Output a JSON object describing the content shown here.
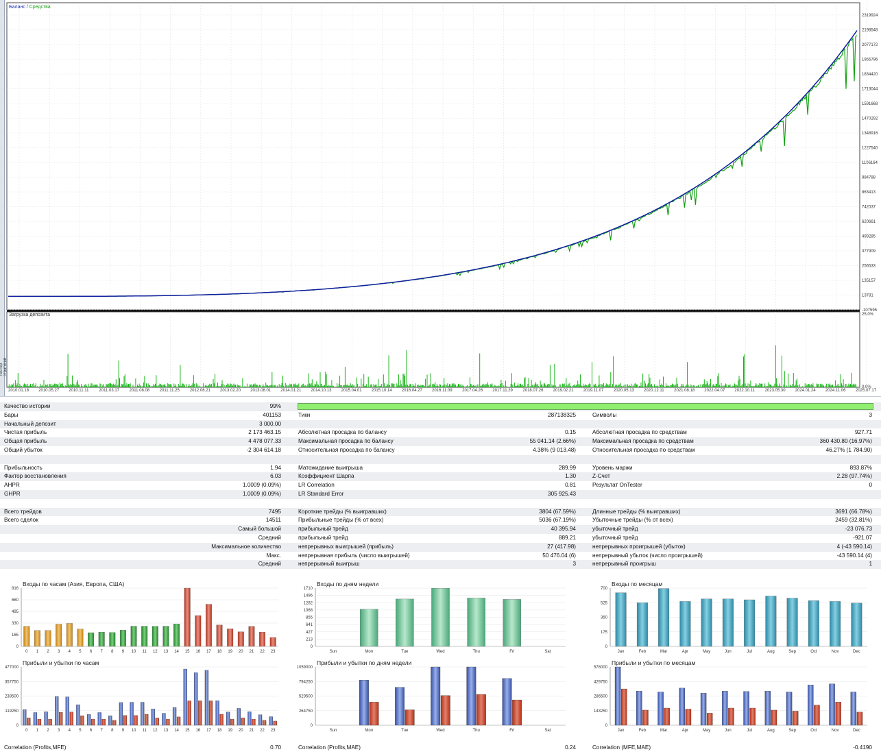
{
  "chart": {
    "legend_balance": "Баланс",
    "legend_sep": " / ",
    "legend_equity": "Средства",
    "load_title": "Загрузка депозита",
    "side_label": "Тестер стратегий",
    "y_ticks": [
      "2319924",
      "2198548",
      "2077172",
      "1955796",
      "1834420",
      "1713044",
      "1591668",
      "1470292",
      "1348916",
      "1227540",
      "1106164",
      "984788",
      "863413",
      "742037",
      "620661",
      "499285",
      "377909",
      "256533",
      "135157",
      "13781",
      "-107595"
    ],
    "load_ticks": [
      "25.0%",
      "0.0%"
    ],
    "x_ticks": [
      "2010.01.18",
      "2010.05.27",
      "2010.11.11",
      "2011.03.17",
      "2011.08.08",
      "2011.11.25",
      "2012.06.21",
      "2013.02.20",
      "2013.08.01",
      "2014.01.21",
      "2014.10.13",
      "2015.04.01",
      "2015.10.14",
      "2016.04.27",
      "2016.11.09",
      "2017.04.26",
      "2017.11.29",
      "2018.07.26",
      "2019.02.21",
      "2019.11.07",
      "2020.05.13",
      "2020.12.11",
      "2021.08.18",
      "2022.04.07",
      "2022.10.11",
      "2023.05.30",
      "2024.01.24",
      "2024.11.06",
      "2025.07.17"
    ],
    "colors": {
      "balance": "#1020a0",
      "equity": "#12a012",
      "load": "#14b414"
    }
  },
  "stats": {
    "rows": [
      {
        "alt": true,
        "cells": [
          [
            "Качество истории",
            "99%"
          ]
        ],
        "quality_bar": true
      },
      {
        "alt": false,
        "cells": [
          [
            "Бары",
            "401153"
          ],
          [
            "Тики",
            "287138325"
          ],
          [
            "Символы",
            "3"
          ]
        ]
      },
      {
        "alt": true,
        "cells": [
          [
            "Начальный депозит",
            "3 000.00"
          ]
        ]
      },
      {
        "alt": false,
        "cells": [
          [
            "Чистая прибыль",
            "2 173 463.15"
          ],
          [
            "Абсолютная просадка по балансу",
            "0.15"
          ],
          [
            "Абсолютная просадка по средствам",
            "927.71"
          ]
        ]
      },
      {
        "alt": true,
        "cells": [
          [
            "Общая прибыль",
            "4 478 077.33"
          ],
          [
            "Максимальная просадка по балансу",
            "55 041.14 (2.66%)"
          ],
          [
            "Максимальная просадка по средствам",
            "360 430.80 (16.97%)"
          ]
        ]
      },
      {
        "alt": false,
        "cells": [
          [
            "Общий убыток",
            "-2 304 614.18"
          ],
          [
            "Относительная просадка по балансу",
            "4.38% (9 013.48)"
          ],
          [
            "Относительная просадка по средствам",
            "46.27% (1 784.90)"
          ]
        ]
      },
      {
        "alt": true,
        "cells": []
      },
      {
        "alt": false,
        "cells": [
          [
            "Прибыльность",
            "1.94"
          ],
          [
            "Матожидание выигрыша",
            "289.99"
          ],
          [
            "Уровень маржи",
            "893.87%"
          ]
        ]
      },
      {
        "alt": true,
        "cells": [
          [
            "Фактор восстановления",
            "6.03"
          ],
          [
            "Коэффициент Шарпа",
            "1.30"
          ],
          [
            "Z-Счет",
            "2.28 (97.74%)"
          ]
        ]
      },
      {
        "alt": false,
        "cells": [
          [
            "AHPR",
            "1.0009 (0.09%)"
          ],
          [
            "LR Correlation",
            "0.81"
          ],
          [
            "Результат OnTester",
            "0"
          ]
        ]
      },
      {
        "alt": true,
        "cells": [
          [
            "GHPR",
            "1.0009 (0.09%)"
          ],
          [
            "LR Standard Error",
            "305 925.43"
          ]
        ]
      },
      {
        "alt": false,
        "cells": []
      },
      {
        "alt": true,
        "cells": [
          [
            "Всего трейдов",
            "7495"
          ],
          [
            "Короткие трейды (% выигравших)",
            "3804 (67.59%)"
          ],
          [
            "Длинные трейды (% выигравших)",
            "3691 (66.78%)"
          ]
        ]
      },
      {
        "alt": false,
        "cells": [
          [
            "Всего сделок",
            "14511"
          ],
          [
            "Прибыльные трейды (% от всех)",
            "5036 (67.19%)"
          ],
          [
            "Убыточные трейды (% от всех)",
            "2459 (32.81%)"
          ]
        ]
      },
      {
        "alt": true,
        "cells": [
          [
            "Самый большой",
            ""
          ],
          [
            "прибыльный трейд",
            "40 395.94"
          ],
          [
            "убыточный трейд",
            "-23 076.73"
          ]
        ],
        "first_right": true
      },
      {
        "alt": false,
        "cells": [
          [
            "Средний",
            ""
          ],
          [
            "прибыльный трейд",
            "889.21"
          ],
          [
            "убыточный трейд",
            "-921.07"
          ]
        ],
        "first_right": true
      },
      {
        "alt": true,
        "cells": [
          [
            "Максимальное количество",
            ""
          ],
          [
            "непрерывных выигрышей (прибыль)",
            "27 (417.98)"
          ],
          [
            "непрерывных проигрышей (убыток)",
            "4 (-43 590.14)"
          ]
        ],
        "first_right": true
      },
      {
        "alt": false,
        "cells": [
          [
            "Макс.",
            ""
          ],
          [
            "непрерывная прибыль (число выигрышей)",
            "50 476.04 (6)"
          ],
          [
            "непрерывный убыток (число проигрышей)",
            "-43 590.14 (4)"
          ]
        ],
        "first_right": true
      },
      {
        "alt": true,
        "cells": [
          [
            "Средний",
            ""
          ],
          [
            "непрерывный выигрыш",
            "3"
          ],
          [
            "непрерывный проигрыш",
            "1"
          ]
        ],
        "first_right": true
      }
    ]
  },
  "minis": {
    "entries_hours": {
      "title": "Входы по часам (Азия, Европа, США)",
      "ticks": [
        "816",
        "660",
        "495",
        "330",
        "165",
        "0"
      ],
      "ymax": 816,
      "categories": [
        "0",
        "1",
        "2",
        "3",
        "4",
        "5",
        "6",
        "7",
        "8",
        "9",
        "10",
        "11",
        "12",
        "13",
        "14",
        "15",
        "16",
        "17",
        "18",
        "19",
        "20",
        "21",
        "22",
        "23"
      ],
      "values": [
        282,
        223,
        223,
        312,
        322,
        243,
        192,
        200,
        195,
        228,
        283,
        283,
        282,
        283,
        315,
        816,
        432,
        590,
        300,
        246,
        205,
        280,
        200,
        125
      ]
    },
    "entries_days": {
      "title": "Входы по дням недели",
      "ticks": [
        "1710",
        "1496",
        "1282",
        "1068",
        "855",
        "641",
        "427",
        "213",
        "0"
      ],
      "ymax": 1710,
      "categories": [
        "Sun",
        "Mon",
        "Tue",
        "Wed",
        "Thu",
        "Fri",
        "Sat"
      ],
      "values": [
        0,
        1090,
        1390,
        1705,
        1420,
        1380,
        0
      ]
    },
    "entries_months": {
      "title": "Входы по месяцам",
      "ticks": [
        "700",
        "525",
        "350",
        "175",
        "0"
      ],
      "ymax": 700,
      "categories": [
        "Jan",
        "Feb",
        "Mar",
        "Apr",
        "May",
        "Jun",
        "Jul",
        "Aug",
        "Sep",
        "Oct",
        "Nov",
        "Dec"
      ],
      "values": [
        645,
        525,
        695,
        540,
        570,
        570,
        560,
        605,
        580,
        550,
        540,
        520
      ]
    },
    "pl_hours": {
      "title": "Прибыли и убытки по часам",
      "ticks": [
        "477000",
        "357750",
        "238500",
        "119250",
        "0"
      ],
      "ymax": 477000,
      "categories": [
        "0",
        "1",
        "2",
        "3",
        "4",
        "5",
        "6",
        "7",
        "8",
        "9",
        "10",
        "11",
        "12",
        "13",
        "14",
        "15",
        "16",
        "17",
        "18",
        "19",
        "20",
        "21",
        "22",
        "23"
      ],
      "profit": [
        128000,
        104000,
        110000,
        235000,
        232000,
        168000,
        88000,
        104000,
        78000,
        186000,
        188000,
        188000,
        133000,
        98000,
        145000,
        460000,
        430000,
        450000,
        201000,
        108000,
        138000,
        110000,
        86000,
        70000
      ],
      "loss": [
        60000,
        50000,
        50000,
        106000,
        108000,
        78000,
        50000,
        50000,
        40000,
        80000,
        80000,
        90000,
        60000,
        50000,
        68000,
        200000,
        200000,
        200000,
        90000,
        50000,
        60000,
        50000,
        40000,
        34000
      ]
    },
    "pl_days": {
      "title": "Прибыли и убытки по дням недели",
      "ticks": [
        "1059000",
        "794250",
        "529500",
        "264750",
        "0"
      ],
      "ymax": 1059000,
      "categories": [
        "Sun",
        "Mon",
        "Tue",
        "Wed",
        "Thu",
        "Fri",
        "Sat"
      ],
      "profit": [
        0,
        820000,
        690000,
        1059000,
        1059000,
        850000,
        0
      ],
      "loss": [
        0,
        420000,
        280000,
        540000,
        560000,
        460000,
        0
      ]
    },
    "pl_months": {
      "title": "Прибыли и убытки по месяцам",
      "ticks": [
        "578000",
        "429750",
        "286500",
        "143250",
        "0"
      ],
      "ymax": 578000,
      "categories": [
        "Jan",
        "Feb",
        "Mar",
        "Apr",
        "May",
        "Jun",
        "Jul",
        "Aug",
        "Sep",
        "Oct",
        "Nov",
        "Dec"
      ],
      "profit": [
        578000,
        338000,
        330000,
        368000,
        318000,
        338000,
        335000,
        338000,
        330000,
        400000,
        410000,
        330000
      ],
      "loss": [
        360000,
        150000,
        170000,
        160000,
        120000,
        170000,
        170000,
        150000,
        140000,
        200000,
        230000,
        130000
      ]
    },
    "colors": {
      "profit": "#4a6ab8",
      "loss": "#c44028"
    }
  },
  "correlations": [
    {
      "label": "Correlation (Profits,MFE)",
      "value": "0.70"
    },
    {
      "label": "Correlation (Profits,MAE)",
      "value": "0.24"
    },
    {
      "label": "Correlation (MFE,MAE)",
      "value": "-0.4190"
    }
  ]
}
